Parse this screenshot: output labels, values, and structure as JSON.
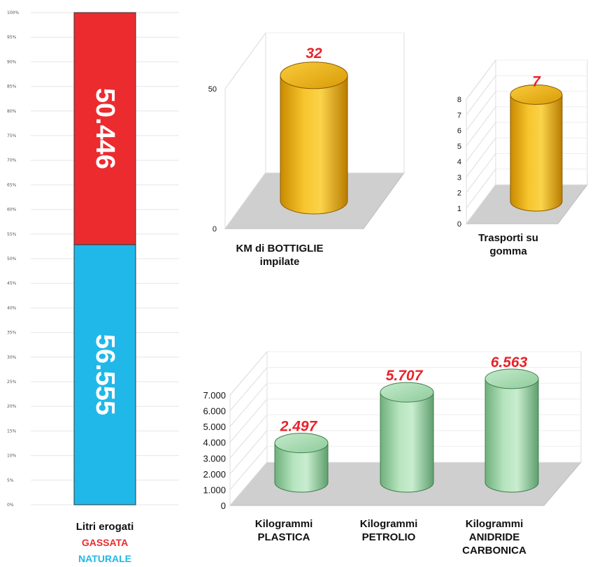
{
  "colors": {
    "gassata": "#ec2b2f",
    "naturale": "#20b8e8",
    "gold": "#f2b41c",
    "green": "#a8dbb0",
    "label_red": "#e8242a"
  },
  "chart_data": [
    {
      "type": "bar",
      "stacked": true,
      "percent": true,
      "y_ticks": [
        "0%",
        "5%",
        "10%",
        "15%",
        "20%",
        "25%",
        "30%",
        "35%",
        "40%",
        "45%",
        "50%",
        "55%",
        "60%",
        "65%",
        "70%",
        "75%",
        "80%",
        "85%",
        "90%",
        "95%",
        "100%"
      ],
      "xlabel": "Litri erogati",
      "legend": [
        "GASSATA",
        "NATURALE"
      ],
      "series": [
        {
          "name": "NATURALE",
          "value": 56555,
          "label": "56.555"
        },
        {
          "name": "GASSATA",
          "value": 50446,
          "label": "50.446"
        }
      ]
    },
    {
      "type": "bar",
      "categories": [
        "KM di BOTTIGLIE impilate"
      ],
      "category_lines": [
        "KM di BOTTIGLIE",
        "impilate"
      ],
      "values": [
        32
      ],
      "value_labels": [
        "32"
      ],
      "ylim": [
        0,
        50
      ],
      "y_ticks": [
        "0",
        "50"
      ]
    },
    {
      "type": "bar",
      "categories": [
        "Trasporti su gomma"
      ],
      "category_lines": [
        "Trasporti su",
        "gomma"
      ],
      "values": [
        7
      ],
      "value_labels": [
        "7"
      ],
      "ylim": [
        0,
        8
      ],
      "y_ticks": [
        "0",
        "1",
        "2",
        "3",
        "4",
        "5",
        "6",
        "7",
        "8"
      ]
    },
    {
      "type": "bar",
      "categories": [
        "Kilogrammi PLASTICA",
        "Kilogrammi PETROLIO",
        "Kilogrammi ANIDRIDE CARBONICA"
      ],
      "category_lines": [
        [
          "Kilogrammi",
          "PLASTICA"
        ],
        [
          "Kilogrammi",
          "PETROLIO"
        ],
        [
          "Kilogrammi",
          "ANIDRIDE",
          "CARBONICA"
        ]
      ],
      "values": [
        2497,
        5707,
        6563
      ],
      "value_labels": [
        "2.497",
        "5.707",
        "6.563"
      ],
      "ylim": [
        0,
        7000
      ],
      "y_ticks": [
        "0",
        "1.000",
        "2.000",
        "3.000",
        "4.000",
        "5.000",
        "6.000",
        "7.000"
      ]
    }
  ]
}
